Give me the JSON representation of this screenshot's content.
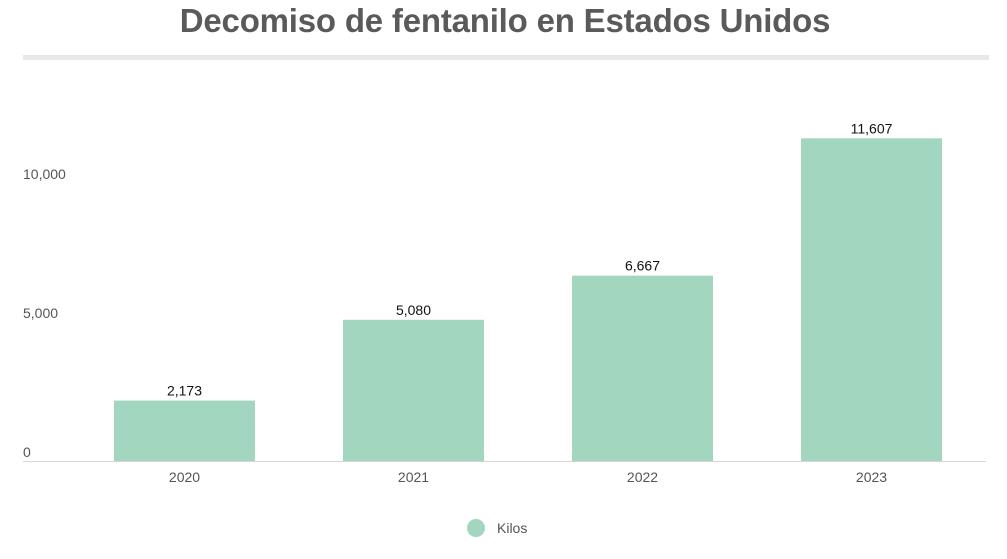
{
  "chart_data": {
    "type": "bar",
    "title": "Decomiso de fentanilo en Estados Unidos",
    "categories": [
      "2020",
      "2021",
      "2022",
      "2023"
    ],
    "series": [
      {
        "name": "Kilos",
        "values": [
          2173,
          5080,
          6667,
          11607
        ],
        "value_labels": [
          "2,173",
          "5,080",
          "6,667",
          "11,607"
        ],
        "color": "#a2d6bf"
      }
    ],
    "xlabel": "",
    "ylabel": "",
    "ylim": [
      0,
      12000
    ],
    "yticks": [
      0,
      5000,
      10000
    ],
    "ytick_labels": [
      "0",
      "5,000",
      "10,000"
    ],
    "grid": false,
    "legend_position": "bottom-center"
  }
}
